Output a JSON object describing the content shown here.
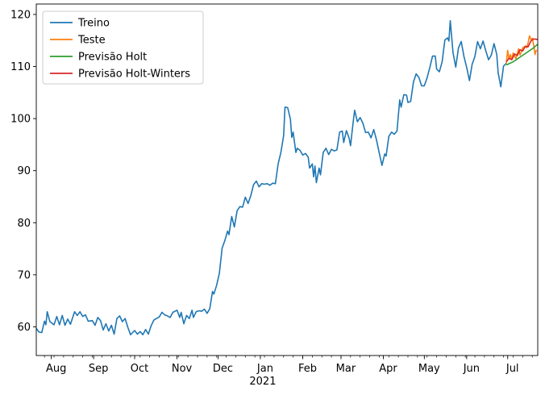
{
  "chart_data": {
    "type": "line",
    "title": "",
    "xlabel": "",
    "ylabel": "",
    "ylim": [
      54.5,
      122
    ],
    "xlim": [
      "2020-07-21",
      "2021-07-23"
    ],
    "grid": false,
    "legend_position": "top-left",
    "y_ticks": [
      60,
      70,
      80,
      90,
      100,
      110,
      120
    ],
    "x_ticks": [
      {
        "date": "2020-08-01",
        "label": "Aug"
      },
      {
        "date": "2020-09-01",
        "label": "Sep"
      },
      {
        "date": "2020-10-01",
        "label": "Oct"
      },
      {
        "date": "2020-11-01",
        "label": "Nov"
      },
      {
        "date": "2020-12-01",
        "label": "Dec"
      },
      {
        "date": "2021-01-01",
        "label": "Jan"
      },
      {
        "date": "2021-02-01",
        "label": "Feb"
      },
      {
        "date": "2021-03-01",
        "label": "Mar"
      },
      {
        "date": "2021-04-01",
        "label": "Apr"
      },
      {
        "date": "2021-05-01",
        "label": "May"
      },
      {
        "date": "2021-06-01",
        "label": "Jun"
      },
      {
        "date": "2021-07-01",
        "label": "Jul"
      }
    ],
    "x_year_label": {
      "date": "2021-01-01",
      "label": "2021"
    },
    "series": [
      {
        "name": "Treino",
        "color": "#1f77b4",
        "points": [
          [
            "2020-07-21",
            59.7
          ],
          [
            "2020-07-23",
            59.0
          ],
          [
            "2020-07-25",
            58.9
          ],
          [
            "2020-07-27",
            61.1
          ],
          [
            "2020-07-28",
            60.4
          ],
          [
            "2020-07-29",
            62.9
          ],
          [
            "2020-07-31",
            61.0
          ],
          [
            "2020-08-03",
            60.4
          ],
          [
            "2020-08-05",
            62.0
          ],
          [
            "2020-08-07",
            60.4
          ],
          [
            "2020-08-09",
            62.2
          ],
          [
            "2020-08-11",
            60.3
          ],
          [
            "2020-08-13",
            61.5
          ],
          [
            "2020-08-15",
            60.5
          ],
          [
            "2020-08-18",
            62.9
          ],
          [
            "2020-08-20",
            62.2
          ],
          [
            "2020-08-22",
            62.9
          ],
          [
            "2020-08-24",
            62.0
          ],
          [
            "2020-08-26",
            62.3
          ],
          [
            "2020-08-28",
            61.1
          ],
          [
            "2020-08-31",
            61.2
          ],
          [
            "2020-09-02",
            60.3
          ],
          [
            "2020-09-04",
            61.8
          ],
          [
            "2020-09-06",
            61.2
          ],
          [
            "2020-09-08",
            59.4
          ],
          [
            "2020-09-10",
            60.6
          ],
          [
            "2020-09-12",
            59.2
          ],
          [
            "2020-09-14",
            60.3
          ],
          [
            "2020-09-16",
            58.6
          ],
          [
            "2020-09-18",
            61.6
          ],
          [
            "2020-09-20",
            62.1
          ],
          [
            "2020-09-22",
            61.0
          ],
          [
            "2020-09-24",
            61.6
          ],
          [
            "2020-09-26",
            59.9
          ],
          [
            "2020-09-28",
            58.5
          ],
          [
            "2020-10-01",
            59.3
          ],
          [
            "2020-10-03",
            58.6
          ],
          [
            "2020-10-05",
            59.1
          ],
          [
            "2020-10-07",
            58.5
          ],
          [
            "2020-10-09",
            59.5
          ],
          [
            "2020-10-11",
            58.6
          ],
          [
            "2020-10-13",
            60.2
          ],
          [
            "2020-10-15",
            61.3
          ],
          [
            "2020-10-17",
            61.6
          ],
          [
            "2020-10-19",
            61.9
          ],
          [
            "2020-10-21",
            62.8
          ],
          [
            "2020-10-23",
            62.3
          ],
          [
            "2020-10-25",
            62.1
          ],
          [
            "2020-10-27",
            61.8
          ],
          [
            "2020-10-29",
            62.8
          ],
          [
            "2020-11-01",
            63.2
          ],
          [
            "2020-11-03",
            61.8
          ],
          [
            "2020-11-04",
            62.8
          ],
          [
            "2020-11-06",
            60.6
          ],
          [
            "2020-11-08",
            62.2
          ],
          [
            "2020-11-10",
            61.6
          ],
          [
            "2020-11-12",
            63.2
          ],
          [
            "2020-11-13",
            61.8
          ],
          [
            "2020-11-15",
            62.9
          ],
          [
            "2020-11-17",
            63.1
          ],
          [
            "2020-11-19",
            63.0
          ],
          [
            "2020-11-21",
            63.4
          ],
          [
            "2020-11-23",
            62.6
          ],
          [
            "2020-11-25",
            63.5
          ],
          [
            "2020-11-27",
            66.8
          ],
          [
            "2020-11-28",
            66.3
          ],
          [
            "2020-11-30",
            68.0
          ],
          [
            "2020-12-02",
            70.3
          ],
          [
            "2020-12-04",
            75.1
          ],
          [
            "2020-12-06",
            76.6
          ],
          [
            "2020-12-08",
            78.4
          ],
          [
            "2020-12-09",
            77.7
          ],
          [
            "2020-12-11",
            81.2
          ],
          [
            "2020-12-13",
            79.2
          ],
          [
            "2020-12-15",
            82.3
          ],
          [
            "2020-12-17",
            83.1
          ],
          [
            "2020-12-19",
            83.0
          ],
          [
            "2020-12-21",
            84.9
          ],
          [
            "2020-12-23",
            83.7
          ],
          [
            "2020-12-25",
            85.2
          ],
          [
            "2020-12-27",
            87.3
          ],
          [
            "2020-12-29",
            88.0
          ],
          [
            "2020-12-31",
            86.9
          ],
          [
            "2021-01-02",
            87.5
          ],
          [
            "2021-01-04",
            87.4
          ],
          [
            "2021-01-06",
            87.5
          ],
          [
            "2021-01-08",
            87.2
          ],
          [
            "2021-01-10",
            87.6
          ],
          [
            "2021-01-12",
            87.5
          ],
          [
            "2021-01-14",
            91.3
          ],
          [
            "2021-01-16",
            93.5
          ],
          [
            "2021-01-18",
            96.7
          ],
          [
            "2021-01-19",
            102.2
          ],
          [
            "2021-01-21",
            102.1
          ],
          [
            "2021-01-23",
            99.9
          ],
          [
            "2021-01-24",
            96.4
          ],
          [
            "2021-01-25",
            97.4
          ],
          [
            "2021-01-27",
            93.5
          ],
          [
            "2021-01-28",
            94.3
          ],
          [
            "2021-01-30",
            93.9
          ],
          [
            "2021-02-01",
            93.0
          ],
          [
            "2021-02-03",
            93.3
          ],
          [
            "2021-02-05",
            92.6
          ],
          [
            "2021-02-06",
            90.5
          ],
          [
            "2021-02-08",
            91.3
          ],
          [
            "2021-02-09",
            88.8
          ],
          [
            "2021-02-10",
            90.9
          ],
          [
            "2021-02-11",
            87.7
          ],
          [
            "2021-02-13",
            90.5
          ],
          [
            "2021-02-14",
            89.2
          ],
          [
            "2021-02-16",
            93.5
          ],
          [
            "2021-02-18",
            94.3
          ],
          [
            "2021-02-20",
            93.1
          ],
          [
            "2021-02-22",
            94.1
          ],
          [
            "2021-02-24",
            93.8
          ],
          [
            "2021-02-26",
            94.0
          ],
          [
            "2021-02-28",
            97.4
          ],
          [
            "2021-03-02",
            97.6
          ],
          [
            "2021-03-03",
            95.4
          ],
          [
            "2021-03-05",
            97.7
          ],
          [
            "2021-03-07",
            96.2
          ],
          [
            "2021-03-08",
            94.8
          ],
          [
            "2021-03-10",
            99.5
          ],
          [
            "2021-03-11",
            101.6
          ],
          [
            "2021-03-13",
            99.4
          ],
          [
            "2021-03-15",
            100.2
          ],
          [
            "2021-03-17",
            99.1
          ],
          [
            "2021-03-19",
            97.3
          ],
          [
            "2021-03-21",
            97.4
          ],
          [
            "2021-03-23",
            96.3
          ],
          [
            "2021-03-25",
            97.9
          ],
          [
            "2021-03-27",
            95.9
          ],
          [
            "2021-03-29",
            93.4
          ],
          [
            "2021-03-31",
            91.0
          ],
          [
            "2021-04-02",
            93.2
          ],
          [
            "2021-04-03",
            92.8
          ],
          [
            "2021-04-05",
            96.6
          ],
          [
            "2021-04-07",
            97.4
          ],
          [
            "2021-04-09",
            97.0
          ],
          [
            "2021-04-11",
            97.6
          ],
          [
            "2021-04-13",
            103.6
          ],
          [
            "2021-04-14",
            102.2
          ],
          [
            "2021-04-16",
            104.6
          ],
          [
            "2021-04-18",
            104.5
          ],
          [
            "2021-04-19",
            103.1
          ],
          [
            "2021-04-21",
            103.3
          ],
          [
            "2021-04-23",
            107.0
          ],
          [
            "2021-04-25",
            108.6
          ],
          [
            "2021-04-27",
            107.9
          ],
          [
            "2021-04-29",
            106.3
          ],
          [
            "2021-05-01",
            106.3
          ],
          [
            "2021-05-03",
            107.8
          ],
          [
            "2021-05-05",
            109.8
          ],
          [
            "2021-05-07",
            112.0
          ],
          [
            "2021-05-09",
            112.0
          ],
          [
            "2021-05-10",
            109.5
          ],
          [
            "2021-05-12",
            109.0
          ],
          [
            "2021-05-14",
            110.9
          ],
          [
            "2021-05-16",
            115.1
          ],
          [
            "2021-05-18",
            115.5
          ],
          [
            "2021-05-19",
            114.9
          ],
          [
            "2021-05-20",
            118.8
          ],
          [
            "2021-05-22",
            112.7
          ],
          [
            "2021-05-24",
            109.9
          ],
          [
            "2021-05-26",
            113.6
          ],
          [
            "2021-05-28",
            114.8
          ],
          [
            "2021-05-30",
            111.9
          ],
          [
            "2021-06-01",
            109.8
          ],
          [
            "2021-06-03",
            107.3
          ],
          [
            "2021-06-05",
            110.4
          ],
          [
            "2021-06-07",
            111.9
          ],
          [
            "2021-06-09",
            114.8
          ],
          [
            "2021-06-11",
            113.4
          ],
          [
            "2021-06-13",
            114.9
          ],
          [
            "2021-06-15",
            113.0
          ],
          [
            "2021-06-17",
            111.3
          ],
          [
            "2021-06-19",
            112.2
          ],
          [
            "2021-06-21",
            114.4
          ],
          [
            "2021-06-23",
            112.3
          ],
          [
            "2021-06-24",
            108.8
          ],
          [
            "2021-06-26",
            106.1
          ],
          [
            "2021-06-28",
            110.1
          ],
          [
            "2021-06-30",
            110.6
          ]
        ]
      },
      {
        "name": "Teste",
        "color": "#ff7f0e",
        "points": [
          [
            "2021-06-30",
            110.6
          ],
          [
            "2021-07-01",
            113.1
          ],
          [
            "2021-07-02",
            111.4
          ],
          [
            "2021-07-03",
            112.3
          ],
          [
            "2021-07-04",
            111.3
          ],
          [
            "2021-07-05",
            112.6
          ],
          [
            "2021-07-07",
            111.5
          ],
          [
            "2021-07-09",
            113.4
          ],
          [
            "2021-07-10",
            112.2
          ],
          [
            "2021-07-12",
            113.6
          ],
          [
            "2021-07-14",
            113.9
          ],
          [
            "2021-07-15",
            113.6
          ],
          [
            "2021-07-16",
            114.6
          ],
          [
            "2021-07-17",
            115.9
          ],
          [
            "2021-07-18",
            115.2
          ],
          [
            "2021-07-19",
            115.4
          ],
          [
            "2021-07-20",
            114.2
          ],
          [
            "2021-07-21",
            112.3
          ],
          [
            "2021-07-22",
            113.2
          ]
        ]
      },
      {
        "name": "Previsão Holt",
        "color": "#2ca02c",
        "points": [
          [
            "2021-06-30",
            110.3
          ],
          [
            "2021-07-05",
            110.9
          ],
          [
            "2021-07-10",
            111.8
          ],
          [
            "2021-07-15",
            112.7
          ],
          [
            "2021-07-20",
            113.6
          ],
          [
            "2021-07-23",
            114.3
          ]
        ]
      },
      {
        "name": "Previsão Holt-Winters",
        "color": "#d62728",
        "points": [
          [
            "2021-06-30",
            110.9
          ],
          [
            "2021-07-02",
            111.6
          ],
          [
            "2021-07-04",
            111.3
          ],
          [
            "2021-07-06",
            112.4
          ],
          [
            "2021-07-08",
            112.1
          ],
          [
            "2021-07-10",
            113.2
          ],
          [
            "2021-07-12",
            113.0
          ],
          [
            "2021-07-14",
            113.9
          ],
          [
            "2021-07-16",
            113.8
          ],
          [
            "2021-07-18",
            114.9
          ],
          [
            "2021-07-20",
            115.3
          ],
          [
            "2021-07-23",
            115.2
          ]
        ]
      }
    ]
  }
}
